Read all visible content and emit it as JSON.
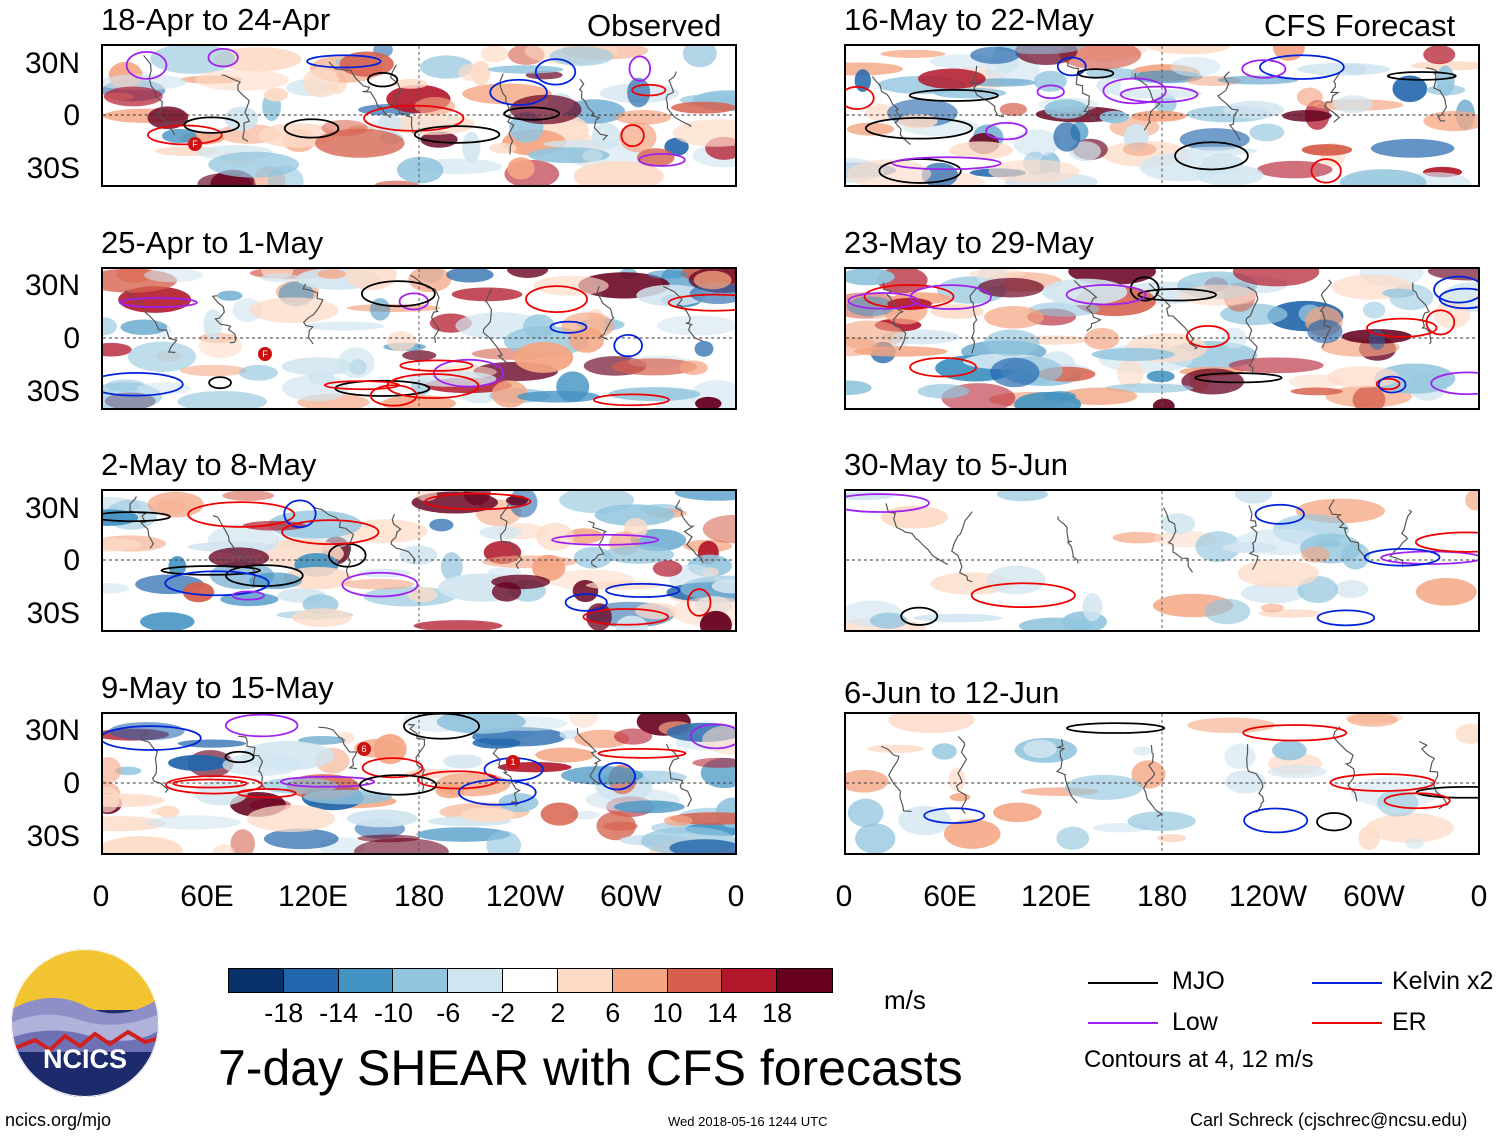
{
  "header": {
    "observed_label": "Observed",
    "forecast_label": "CFS Forecast"
  },
  "panels_left": [
    {
      "title": "18-Apr to 24-Apr",
      "tc_markers": [
        "F"
      ]
    },
    {
      "title": "25-Apr to 1-May",
      "tc_markers": [
        "F"
      ]
    },
    {
      "title": "2-May to 8-May",
      "tc_markers": []
    },
    {
      "title": "9-May to 15-May",
      "tc_markers": [
        "6",
        "1"
      ]
    }
  ],
  "panels_right": [
    {
      "title": "16-May to 22-May"
    },
    {
      "title": "23-May to 29-May"
    },
    {
      "title": "30-May to 5-Jun"
    },
    {
      "title": "6-Jun to 12-Jun"
    }
  ],
  "axes": {
    "y_ticks": [
      "30N",
      "0",
      "30S"
    ],
    "x_ticks": [
      "0",
      "60E",
      "120E",
      "180",
      "120W",
      "60W",
      "0"
    ]
  },
  "colorbar": {
    "labels": [
      "-18",
      "-14",
      "-10",
      "-6",
      "-2",
      "2",
      "6",
      "10",
      "14",
      "18"
    ],
    "colors": [
      "#08306b",
      "#2166ac",
      "#4393c3",
      "#92c5de",
      "#d1e5f0",
      "#ffffff",
      "#fddbc7",
      "#f4a582",
      "#d6604d",
      "#b2182b",
      "#67001f"
    ],
    "units": "m/s"
  },
  "legend": {
    "mjo": {
      "label": "MJO",
      "color": "#000000"
    },
    "kelvin": {
      "label": "Kelvin x2",
      "color": "#0022dd"
    },
    "low": {
      "label": "Low",
      "color": "#a020f0"
    },
    "er": {
      "label": "ER",
      "color": "#ee0000"
    },
    "note": "Contours at 4, 12 m/s"
  },
  "logo": {
    "text": "NCICS"
  },
  "title": "7-day SHEAR with CFS forecasts",
  "footer": {
    "url": "ncics.org/mjo",
    "timestamp": "Wed 2018-05-16 1244 UTC",
    "author": "Carl Schreck (cjschrec@ncsu.edu)"
  }
}
